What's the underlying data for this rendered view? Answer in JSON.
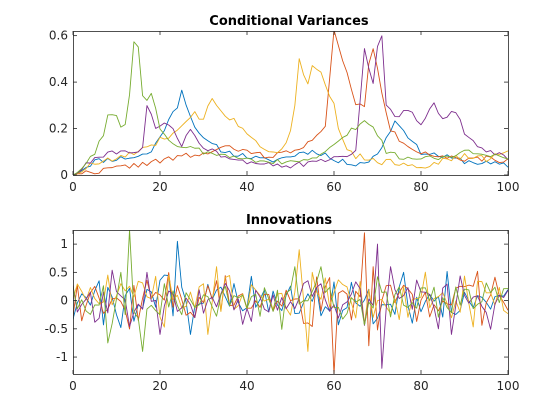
{
  "chart_data": [
    {
      "type": "line",
      "title": "Conditional Variances",
      "xlim": [
        0,
        100
      ],
      "ylim": [
        0,
        0.62
      ],
      "xticks": [
        0,
        20,
        40,
        60,
        80,
        100
      ],
      "yticks": [
        0,
        0.2,
        0.4,
        0.6
      ],
      "xtick_labels": [
        "0",
        "20",
        "40",
        "60",
        "80",
        "100"
      ],
      "ytick_labels": [
        "0",
        "0.2",
        "0.4",
        "0.6"
      ],
      "colors": [
        "#0072BD",
        "#D95319",
        "#EDB120",
        "#7E2F8E",
        "#77AC30"
      ],
      "series": [
        {
          "keypoints": [
            [
              0,
              0
            ],
            [
              5,
              0.06
            ],
            [
              10,
              0.07
            ],
            [
              15,
              0.08
            ],
            [
              18,
              0.1
            ],
            [
              21,
              0.2
            ],
            [
              24,
              0.3
            ],
            [
              25,
              0.37
            ],
            [
              27,
              0.25
            ],
            [
              30,
              0.15
            ],
            [
              35,
              0.1
            ],
            [
              40,
              0.08
            ],
            [
              45,
              0.06
            ],
            [
              50,
              0.08
            ],
            [
              53,
              0.1
            ],
            [
              56,
              0.1
            ],
            [
              58,
              0.09
            ],
            [
              60,
              0.06
            ],
            [
              65,
              0.05
            ],
            [
              68,
              0.06
            ],
            [
              70,
              0.09
            ],
            [
              72,
              0.16
            ],
            [
              74,
              0.23
            ],
            [
              76,
              0.2
            ],
            [
              78,
              0.14
            ],
            [
              80,
              0.1
            ],
            [
              85,
              0.08
            ],
            [
              90,
              0.06
            ],
            [
              95,
              0.05
            ],
            [
              100,
              0.04
            ]
          ],
          "seed": 11,
          "noise": 0.012
        },
        {
          "keypoints": [
            [
              0,
              0
            ],
            [
              10,
              0.03
            ],
            [
              20,
              0.06
            ],
            [
              25,
              0.08
            ],
            [
              30,
              0.09
            ],
            [
              35,
              0.12
            ],
            [
              40,
              0.1
            ],
            [
              45,
              0.08
            ],
            [
              50,
              0.1
            ],
            [
              55,
              0.15
            ],
            [
              58,
              0.2
            ],
            [
              60,
              0.62
            ],
            [
              62,
              0.5
            ],
            [
              63,
              0.45
            ],
            [
              64,
              0.36
            ],
            [
              65,
              0.3
            ],
            [
              67,
              0.3
            ],
            [
              68,
              0.47
            ],
            [
              69,
              0.55
            ],
            [
              71,
              0.35
            ],
            [
              73,
              0.2
            ],
            [
              75,
              0.15
            ],
            [
              80,
              0.1
            ],
            [
              85,
              0.08
            ],
            [
              90,
              0.06
            ],
            [
              95,
              0.07
            ],
            [
              100,
              0.06
            ]
          ],
          "seed": 22,
          "noise": 0.012
        },
        {
          "keypoints": [
            [
              0,
              0
            ],
            [
              5,
              0.05
            ],
            [
              10,
              0.07
            ],
            [
              15,
              0.1
            ],
            [
              18,
              0.12
            ],
            [
              20,
              0.15
            ],
            [
              25,
              0.2
            ],
            [
              28,
              0.26
            ],
            [
              30,
              0.24
            ],
            [
              32,
              0.34
            ],
            [
              34,
              0.28
            ],
            [
              36,
              0.25
            ],
            [
              40,
              0.18
            ],
            [
              44,
              0.12
            ],
            [
              48,
              0.1
            ],
            [
              50,
              0.2
            ],
            [
              51,
              0.3
            ],
            [
              52,
              0.5
            ],
            [
              53,
              0.43
            ],
            [
              54,
              0.4
            ],
            [
              55,
              0.48
            ],
            [
              57,
              0.45
            ],
            [
              58,
              0.4
            ],
            [
              60,
              0.3
            ],
            [
              61,
              0.2
            ],
            [
              63,
              0.12
            ],
            [
              65,
              0.08
            ],
            [
              70,
              0.06
            ],
            [
              75,
              0.05
            ],
            [
              80,
              0.04
            ],
            [
              85,
              0.06
            ],
            [
              90,
              0.08
            ],
            [
              95,
              0.07
            ],
            [
              100,
              0.1
            ]
          ],
          "seed": 33,
          "noise": 0.015
        },
        {
          "keypoints": [
            [
              0,
              0
            ],
            [
              5,
              0.07
            ],
            [
              10,
              0.1
            ],
            [
              14,
              0.09
            ],
            [
              16,
              0.13
            ],
            [
              17,
              0.3
            ],
            [
              19,
              0.2
            ],
            [
              22,
              0.22
            ],
            [
              25,
              0.13
            ],
            [
              27,
              0.2
            ],
            [
              30,
              0.12
            ],
            [
              35,
              0.08
            ],
            [
              40,
              0.06
            ],
            [
              45,
              0.05
            ],
            [
              50,
              0.04
            ],
            [
              55,
              0.05
            ],
            [
              60,
              0.07
            ],
            [
              65,
              0.1
            ],
            [
              67,
              0.55
            ],
            [
              68,
              0.45
            ],
            [
              69,
              0.4
            ],
            [
              70,
              0.55
            ],
            [
              71,
              0.6
            ],
            [
              72,
              0.3
            ],
            [
              74,
              0.25
            ],
            [
              77,
              0.28
            ],
            [
              80,
              0.22
            ],
            [
              83,
              0.3
            ],
            [
              85,
              0.25
            ],
            [
              88,
              0.28
            ],
            [
              90,
              0.18
            ],
            [
              93,
              0.12
            ],
            [
              96,
              0.1
            ],
            [
              100,
              0.07
            ]
          ],
          "seed": 44,
          "noise": 0.012
        },
        {
          "keypoints": [
            [
              0,
              0
            ],
            [
              3,
              0.05
            ],
            [
              5,
              0.1
            ],
            [
              7,
              0.18
            ],
            [
              8,
              0.27
            ],
            [
              10,
              0.25
            ],
            [
              11,
              0.2
            ],
            [
              12,
              0.22
            ],
            [
              13,
              0.35
            ],
            [
              14,
              0.58
            ],
            [
              15,
              0.55
            ],
            [
              16,
              0.35
            ],
            [
              17,
              0.33
            ],
            [
              18,
              0.36
            ],
            [
              19,
              0.28
            ],
            [
              20,
              0.2
            ],
            [
              22,
              0.15
            ],
            [
              25,
              0.12
            ],
            [
              30,
              0.1
            ],
            [
              35,
              0.08
            ],
            [
              40,
              0.07
            ],
            [
              45,
              0.06
            ],
            [
              50,
              0.05
            ],
            [
              55,
              0.07
            ],
            [
              60,
              0.12
            ],
            [
              63,
              0.18
            ],
            [
              65,
              0.2
            ],
            [
              67,
              0.24
            ],
            [
              70,
              0.18
            ],
            [
              72,
              0.1
            ],
            [
              75,
              0.08
            ],
            [
              80,
              0.07
            ],
            [
              85,
              0.08
            ],
            [
              90,
              0.1
            ],
            [
              95,
              0.09
            ],
            [
              100,
              0.08
            ]
          ],
          "seed": 55,
          "noise": 0.012
        }
      ]
    },
    {
      "type": "line",
      "title": "Innovations",
      "xlim": [
        0,
        100
      ],
      "ylim": [
        -1.3,
        1.25
      ],
      "xticks": [
        0,
        20,
        40,
        60,
        80,
        100
      ],
      "yticks": [
        -1,
        -0.5,
        0,
        0.5,
        1
      ],
      "xtick_labels": [
        "0",
        "20",
        "40",
        "60",
        "80",
        "100"
      ],
      "ytick_labels": [
        "-1",
        "-0.5",
        "0",
        "0.5",
        "1"
      ],
      "colors": [
        "#0072BD",
        "#D95319",
        "#EDB120",
        "#7E2F8E",
        "#77AC30"
      ],
      "series": [
        {
          "seed": 101,
          "scale": 0.22,
          "spikes": [
            [
              24,
              1.05
            ],
            [
              27,
              -0.6
            ],
            [
              76,
              0.5
            ],
            [
              78,
              -0.4
            ]
          ]
        },
        {
          "seed": 202,
          "scale": 0.22,
          "spikes": [
            [
              60,
              -1.3
            ],
            [
              67,
              1.2
            ],
            [
              68,
              -0.8
            ],
            [
              69,
              0.6
            ]
          ]
        },
        {
          "seed": 303,
          "scale": 0.25,
          "spikes": [
            [
              33,
              0.6
            ],
            [
              52,
              0.9
            ],
            [
              54,
              -0.9
            ],
            [
              55,
              0.5
            ],
            [
              58,
              0.4
            ]
          ]
        },
        {
          "seed": 404,
          "scale": 0.22,
          "spikes": [
            [
              17,
              0.5
            ],
            [
              20,
              -0.6
            ],
            [
              70,
              1.0
            ],
            [
              71,
              -1.2
            ],
            [
              73,
              0.6
            ],
            [
              84,
              -0.5
            ]
          ]
        },
        {
          "seed": 505,
          "scale": 0.22,
          "spikes": [
            [
              13,
              1.25
            ],
            [
              14,
              -0.2
            ],
            [
              11,
              0.5
            ],
            [
              16,
              -0.9
            ],
            [
              8,
              -0.75
            ]
          ]
        }
      ]
    }
  ]
}
